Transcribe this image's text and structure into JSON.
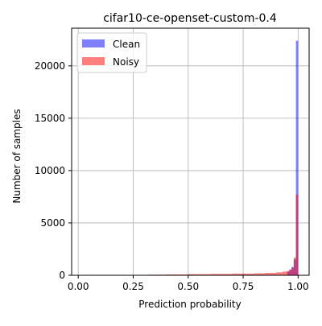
{
  "chart_data": {
    "type": "histogram",
    "title": "cifar10-ce-openset-custom-0.4",
    "xlabel": "Prediction probability",
    "ylabel": "Number of samples",
    "xlim": [
      -0.03,
      1.05
    ],
    "ylim": [
      0,
      23600
    ],
    "xticks": [
      0.0,
      0.25,
      0.5,
      0.75,
      1.0
    ],
    "xtick_labels": [
      "0.00",
      "0.25",
      "0.50",
      "0.75",
      "1.00"
    ],
    "yticks": [
      0,
      5000,
      10000,
      15000,
      20000
    ],
    "ytick_labels": [
      "0",
      "5000",
      "10000",
      "15000",
      "20000"
    ],
    "grid": true,
    "legend_position": "top-left",
    "series": [
      {
        "name": "Clean",
        "color": "#0000ff",
        "alpha": 0.5,
        "bins": [
          {
            "x0": 0.95,
            "x1": 0.96,
            "value": 350
          },
          {
            "x0": 0.96,
            "x1": 0.97,
            "value": 550
          },
          {
            "x0": 0.97,
            "x1": 0.98,
            "value": 800
          },
          {
            "x0": 0.98,
            "x1": 0.99,
            "value": 1500
          },
          {
            "x0": 0.99,
            "x1": 1.0,
            "value": 22400
          }
        ]
      },
      {
        "name": "Noisy",
        "color": "#ff0000",
        "alpha": 0.5,
        "bins": [
          {
            "x0": 0.32,
            "x1": 0.4,
            "value": 60
          },
          {
            "x0": 0.4,
            "x1": 0.5,
            "value": 80
          },
          {
            "x0": 0.5,
            "x1": 0.6,
            "value": 110
          },
          {
            "x0": 0.6,
            "x1": 0.7,
            "value": 130
          },
          {
            "x0": 0.7,
            "x1": 0.8,
            "value": 160
          },
          {
            "x0": 0.8,
            "x1": 0.85,
            "value": 190
          },
          {
            "x0": 0.85,
            "x1": 0.9,
            "value": 230
          },
          {
            "x0": 0.9,
            "x1": 0.93,
            "value": 280
          },
          {
            "x0": 0.93,
            "x1": 0.95,
            "value": 350
          },
          {
            "x0": 0.95,
            "x1": 0.96,
            "value": 420
          },
          {
            "x0": 0.96,
            "x1": 0.97,
            "value": 520
          },
          {
            "x0": 0.97,
            "x1": 0.98,
            "value": 700
          },
          {
            "x0": 0.98,
            "x1": 0.99,
            "value": 1700
          },
          {
            "x0": 0.99,
            "x1": 1.0,
            "value": 7700
          }
        ]
      }
    ]
  }
}
